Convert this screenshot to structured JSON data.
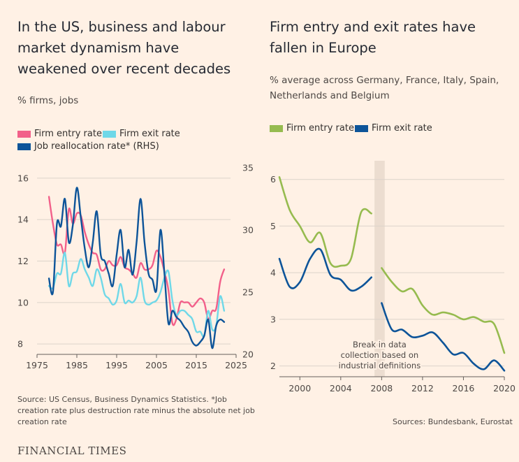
{
  "brand": "FINANCIAL TIMES",
  "chart_data": [
    {
      "type": "line",
      "title": "In the US, business and labour market dynamism have weakened over recent decades",
      "subtitle": "% firms, jobs",
      "source": "Source: US Census, Business Dynamics Statistics. *Job creation rate plus destruction rate minus the absolute net job creation rate",
      "xlim": [
        1975,
        2025
      ],
      "xticks": [
        "1975",
        "1985",
        "1995",
        "2005",
        "2015",
        "2025"
      ],
      "xtick_values": [
        1975,
        1985,
        1995,
        2005,
        2015,
        2025
      ],
      "ylim": [
        7.5,
        16.5
      ],
      "yticks": [
        "16",
        "14",
        "12",
        "10",
        "8"
      ],
      "ytick_values": [
        16,
        14,
        12,
        10,
        8
      ],
      "y2lim": [
        20,
        35
      ],
      "y2ticks": [
        "35",
        "30",
        "25",
        "20"
      ],
      "y2tick_values": [
        35,
        30,
        25,
        20
      ],
      "grid": true,
      "legend": "top",
      "series": [
        {
          "name": "Firm entry rate",
          "color": "#f2608a",
          "axis": "left",
          "x": [
            1978,
            1979,
            1980,
            1981,
            1982,
            1983,
            1984,
            1985,
            1986,
            1987,
            1988,
            1989,
            1990,
            1991,
            1992,
            1993,
            1994,
            1995,
            1996,
            1997,
            1998,
            1999,
            2000,
            2001,
            2002,
            2003,
            2004,
            2005,
            2006,
            2007,
            2008,
            2009,
            2010,
            2011,
            2012,
            2013,
            2014,
            2015,
            2016,
            2017,
            2018,
            2019,
            2020,
            2021,
            2022
          ],
          "y": [
            15.1,
            13.8,
            12.8,
            12.8,
            12.4,
            14.5,
            13.8,
            14.3,
            14.2,
            13.4,
            12.8,
            12.4,
            12.3,
            11.6,
            11.6,
            12.0,
            11.8,
            11.8,
            12.2,
            11.7,
            11.6,
            11.4,
            11.2,
            11.9,
            11.6,
            11.6,
            11.8,
            12.5,
            12.2,
            11.5,
            10.6,
            9.0,
            9.2,
            10.0,
            10.0,
            10.0,
            9.8,
            10.0,
            10.2,
            10.0,
            9.2,
            9.6,
            9.7,
            11.0,
            11.6
          ]
        },
        {
          "name": "Firm exit rate",
          "color": "#6fd8e8",
          "axis": "left",
          "x": [
            1978,
            1979,
            1980,
            1981,
            1982,
            1983,
            1984,
            1985,
            1986,
            1987,
            1988,
            1989,
            1990,
            1991,
            1992,
            1993,
            1994,
            1995,
            1996,
            1997,
            1998,
            1999,
            2000,
            2001,
            2002,
            2003,
            2004,
            2005,
            2006,
            2007,
            2008,
            2009,
            2010,
            2011,
            2012,
            2013,
            2014,
            2015,
            2016,
            2017,
            2018,
            2019,
            2020,
            2021,
            2022
          ],
          "y": [
            10.8,
            10.7,
            11.4,
            11.4,
            12.4,
            10.8,
            11.4,
            11.5,
            12.1,
            11.6,
            11.2,
            10.8,
            11.6,
            11.2,
            10.4,
            10.2,
            9.9,
            10.1,
            10.9,
            10.0,
            10.1,
            10.0,
            10.3,
            11.2,
            10.1,
            9.9,
            10.0,
            10.1,
            10.5,
            11.2,
            11.5,
            10.1,
            9.4,
            9.6,
            9.6,
            9.4,
            9.2,
            8.6,
            8.6,
            8.4,
            9.6,
            8.7,
            8.9,
            10.3,
            9.6
          ]
        },
        {
          "name": "Job reallocation rate* (RHS)",
          "color": "#0d5499",
          "axis": "right",
          "x": [
            1978,
            1979,
            1980,
            1981,
            1982,
            1983,
            1984,
            1985,
            1986,
            1987,
            1988,
            1989,
            1990,
            1991,
            1992,
            1993,
            1994,
            1995,
            1996,
            1997,
            1998,
            1999,
            2000,
            2001,
            2002,
            2003,
            2004,
            2005,
            2006,
            2007,
            2008,
            2009,
            2010,
            2011,
            2012,
            2013,
            2014,
            2015,
            2016,
            2017,
            2018,
            2019,
            2020,
            2021,
            2022
          ],
          "y": [
            26.1,
            25.0,
            30.5,
            30.3,
            32.5,
            29.0,
            30.4,
            33.4,
            31.0,
            28.5,
            27.0,
            29.0,
            31.5,
            28.0,
            27.5,
            26.5,
            25.5,
            28.0,
            30.0,
            27.0,
            28.4,
            26.4,
            29.0,
            32.5,
            29.0,
            26.5,
            26.0,
            25.2,
            30.0,
            26.5,
            22.5,
            23.5,
            23.0,
            22.7,
            22.2,
            21.8,
            21.0,
            20.7,
            21.0,
            21.5,
            22.8,
            20.5,
            22.3,
            22.8,
            22.6
          ]
        }
      ]
    },
    {
      "type": "line",
      "title": "Firm entry and exit rates have fallen in Europe",
      "subtitle": "% average across Germany, France, Italy, Spain, Netherlands and Belgium",
      "source": "Sources: Bundesbank, Eurostat",
      "xlim": [
        1998,
        2020
      ],
      "xticks": [
        "2000",
        "2004",
        "2008",
        "2012",
        "2016",
        "2020"
      ],
      "xtick_values": [
        2000,
        2004,
        2008,
        2012,
        2016,
        2020
      ],
      "ylim": [
        1.8,
        6.4
      ],
      "yticks": [
        "6",
        "5",
        "4",
        "3",
        "2"
      ],
      "ytick_values": [
        6,
        5,
        4,
        3,
        2
      ],
      "grid": true,
      "legend": "top",
      "annotation": {
        "text_lines": [
          "Break in data",
          "collection based on",
          "industrial definitions"
        ],
        "x_range": [
          2007.3,
          2008.3
        ]
      },
      "series": [
        {
          "name": "Firm entry rate",
          "color": "#96bb4f",
          "segments": [
            {
              "x": [
                1998,
                1999,
                2000,
                2001,
                2002,
                2003,
                2004,
                2005,
                2006,
                2007
              ],
              "y": [
                6.05,
                5.35,
                5.0,
                4.65,
                4.85,
                4.2,
                4.15,
                4.3,
                5.3,
                5.27
              ]
            },
            {
              "x": [
                2008,
                2009,
                2010,
                2011,
                2012,
                2013,
                2014,
                2015,
                2016,
                2017,
                2018,
                2019,
                2020
              ],
              "y": [
                4.1,
                3.8,
                3.6,
                3.65,
                3.3,
                3.1,
                3.15,
                3.1,
                3.0,
                3.05,
                2.95,
                2.9,
                2.28
              ]
            }
          ]
        },
        {
          "name": "Firm exit rate",
          "color": "#0d5499",
          "segments": [
            {
              "x": [
                1998,
                1999,
                2000,
                2001,
                2002,
                2003,
                2004,
                2005,
                2006,
                2007
              ],
              "y": [
                4.3,
                3.7,
                3.8,
                4.3,
                4.5,
                3.95,
                3.85,
                3.62,
                3.7,
                3.9
              ]
            },
            {
              "x": [
                2008,
                2009,
                2010,
                2011,
                2012,
                2013,
                2014,
                2015,
                2016,
                2017,
                2018,
                2019,
                2020
              ],
              "y": [
                3.35,
                2.78,
                2.78,
                2.62,
                2.65,
                2.72,
                2.5,
                2.25,
                2.28,
                2.05,
                1.93,
                2.12,
                1.9
              ]
            }
          ]
        }
      ]
    }
  ]
}
